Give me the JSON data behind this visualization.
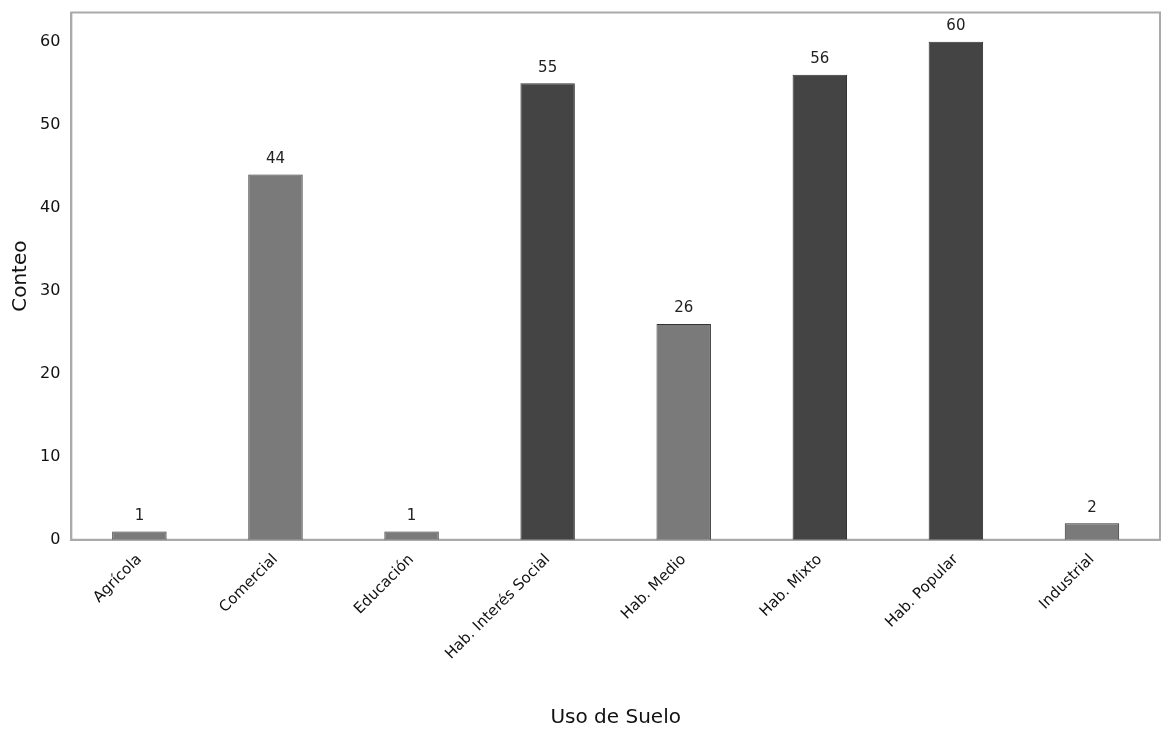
{
  "chart_data": {
    "type": "bar",
    "xlabel": "Uso de Suelo",
    "ylabel": "Conteo",
    "categories": [
      "Agrícola",
      "Comercial",
      "Educación",
      "Hab. Interés Social",
      "Hab. Medio",
      "Hab. Mixto",
      "Hab. Popular",
      "Industrial"
    ],
    "values": [
      1,
      44,
      1,
      55,
      26,
      56,
      60,
      2
    ],
    "colors": [
      "#7a7a7a",
      "#7a7a7a",
      "#7a7a7a",
      "#444444",
      "#7a7a7a",
      "#444444",
      "#444444",
      "#7a7a7a"
    ],
    "ylim": [
      0,
      63.5
    ],
    "yticks": [
      0,
      10,
      20,
      30,
      40,
      50,
      60
    ],
    "grid": false,
    "legend": false,
    "data_labels": true
  }
}
